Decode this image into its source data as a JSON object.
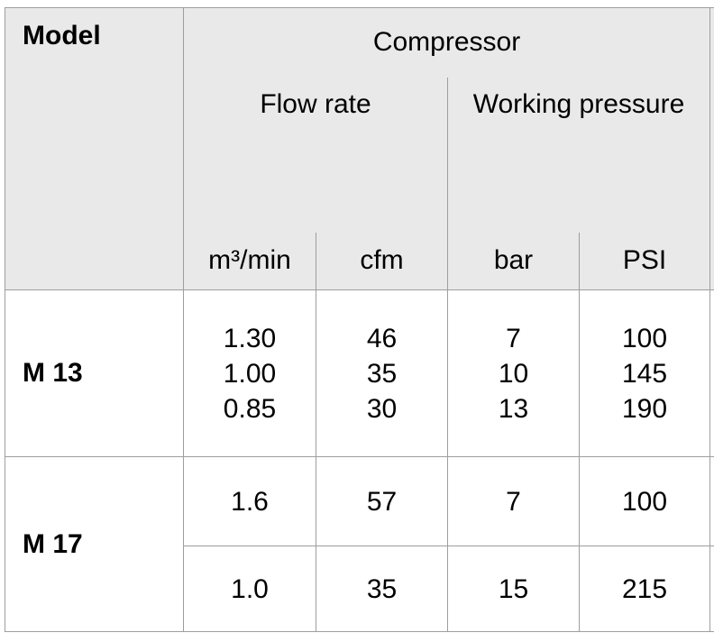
{
  "table": {
    "headers": {
      "model": "Model",
      "compressor": "Compressor",
      "flow_rate": "Flow rate",
      "working_pressure": "Working pressure",
      "unit_m3min": "m³/min",
      "unit_cfm": "cfm",
      "unit_bar": "bar",
      "unit_psi": "PSI"
    },
    "rows": {
      "m13": {
        "model": "M 13",
        "flow_m3min": [
          "1.30",
          "1.00",
          "0.85"
        ],
        "flow_cfm": [
          "46",
          "35",
          "30"
        ],
        "pressure_bar": [
          "7",
          "10",
          "13"
        ],
        "pressure_psi": [
          "100",
          "145",
          "190"
        ]
      },
      "m17": {
        "model": "M 17",
        "variants": [
          {
            "m3min": "1.6",
            "cfm": "57",
            "bar": "7",
            "psi": "100"
          },
          {
            "m3min": "1.0",
            "cfm": "35",
            "bar": "15",
            "psi": "215"
          }
        ]
      }
    },
    "colors": {
      "header_bg": "#e9e9e9",
      "border": "#9e9e9e",
      "body_bg": "#ffffff",
      "text": "#000000"
    }
  }
}
